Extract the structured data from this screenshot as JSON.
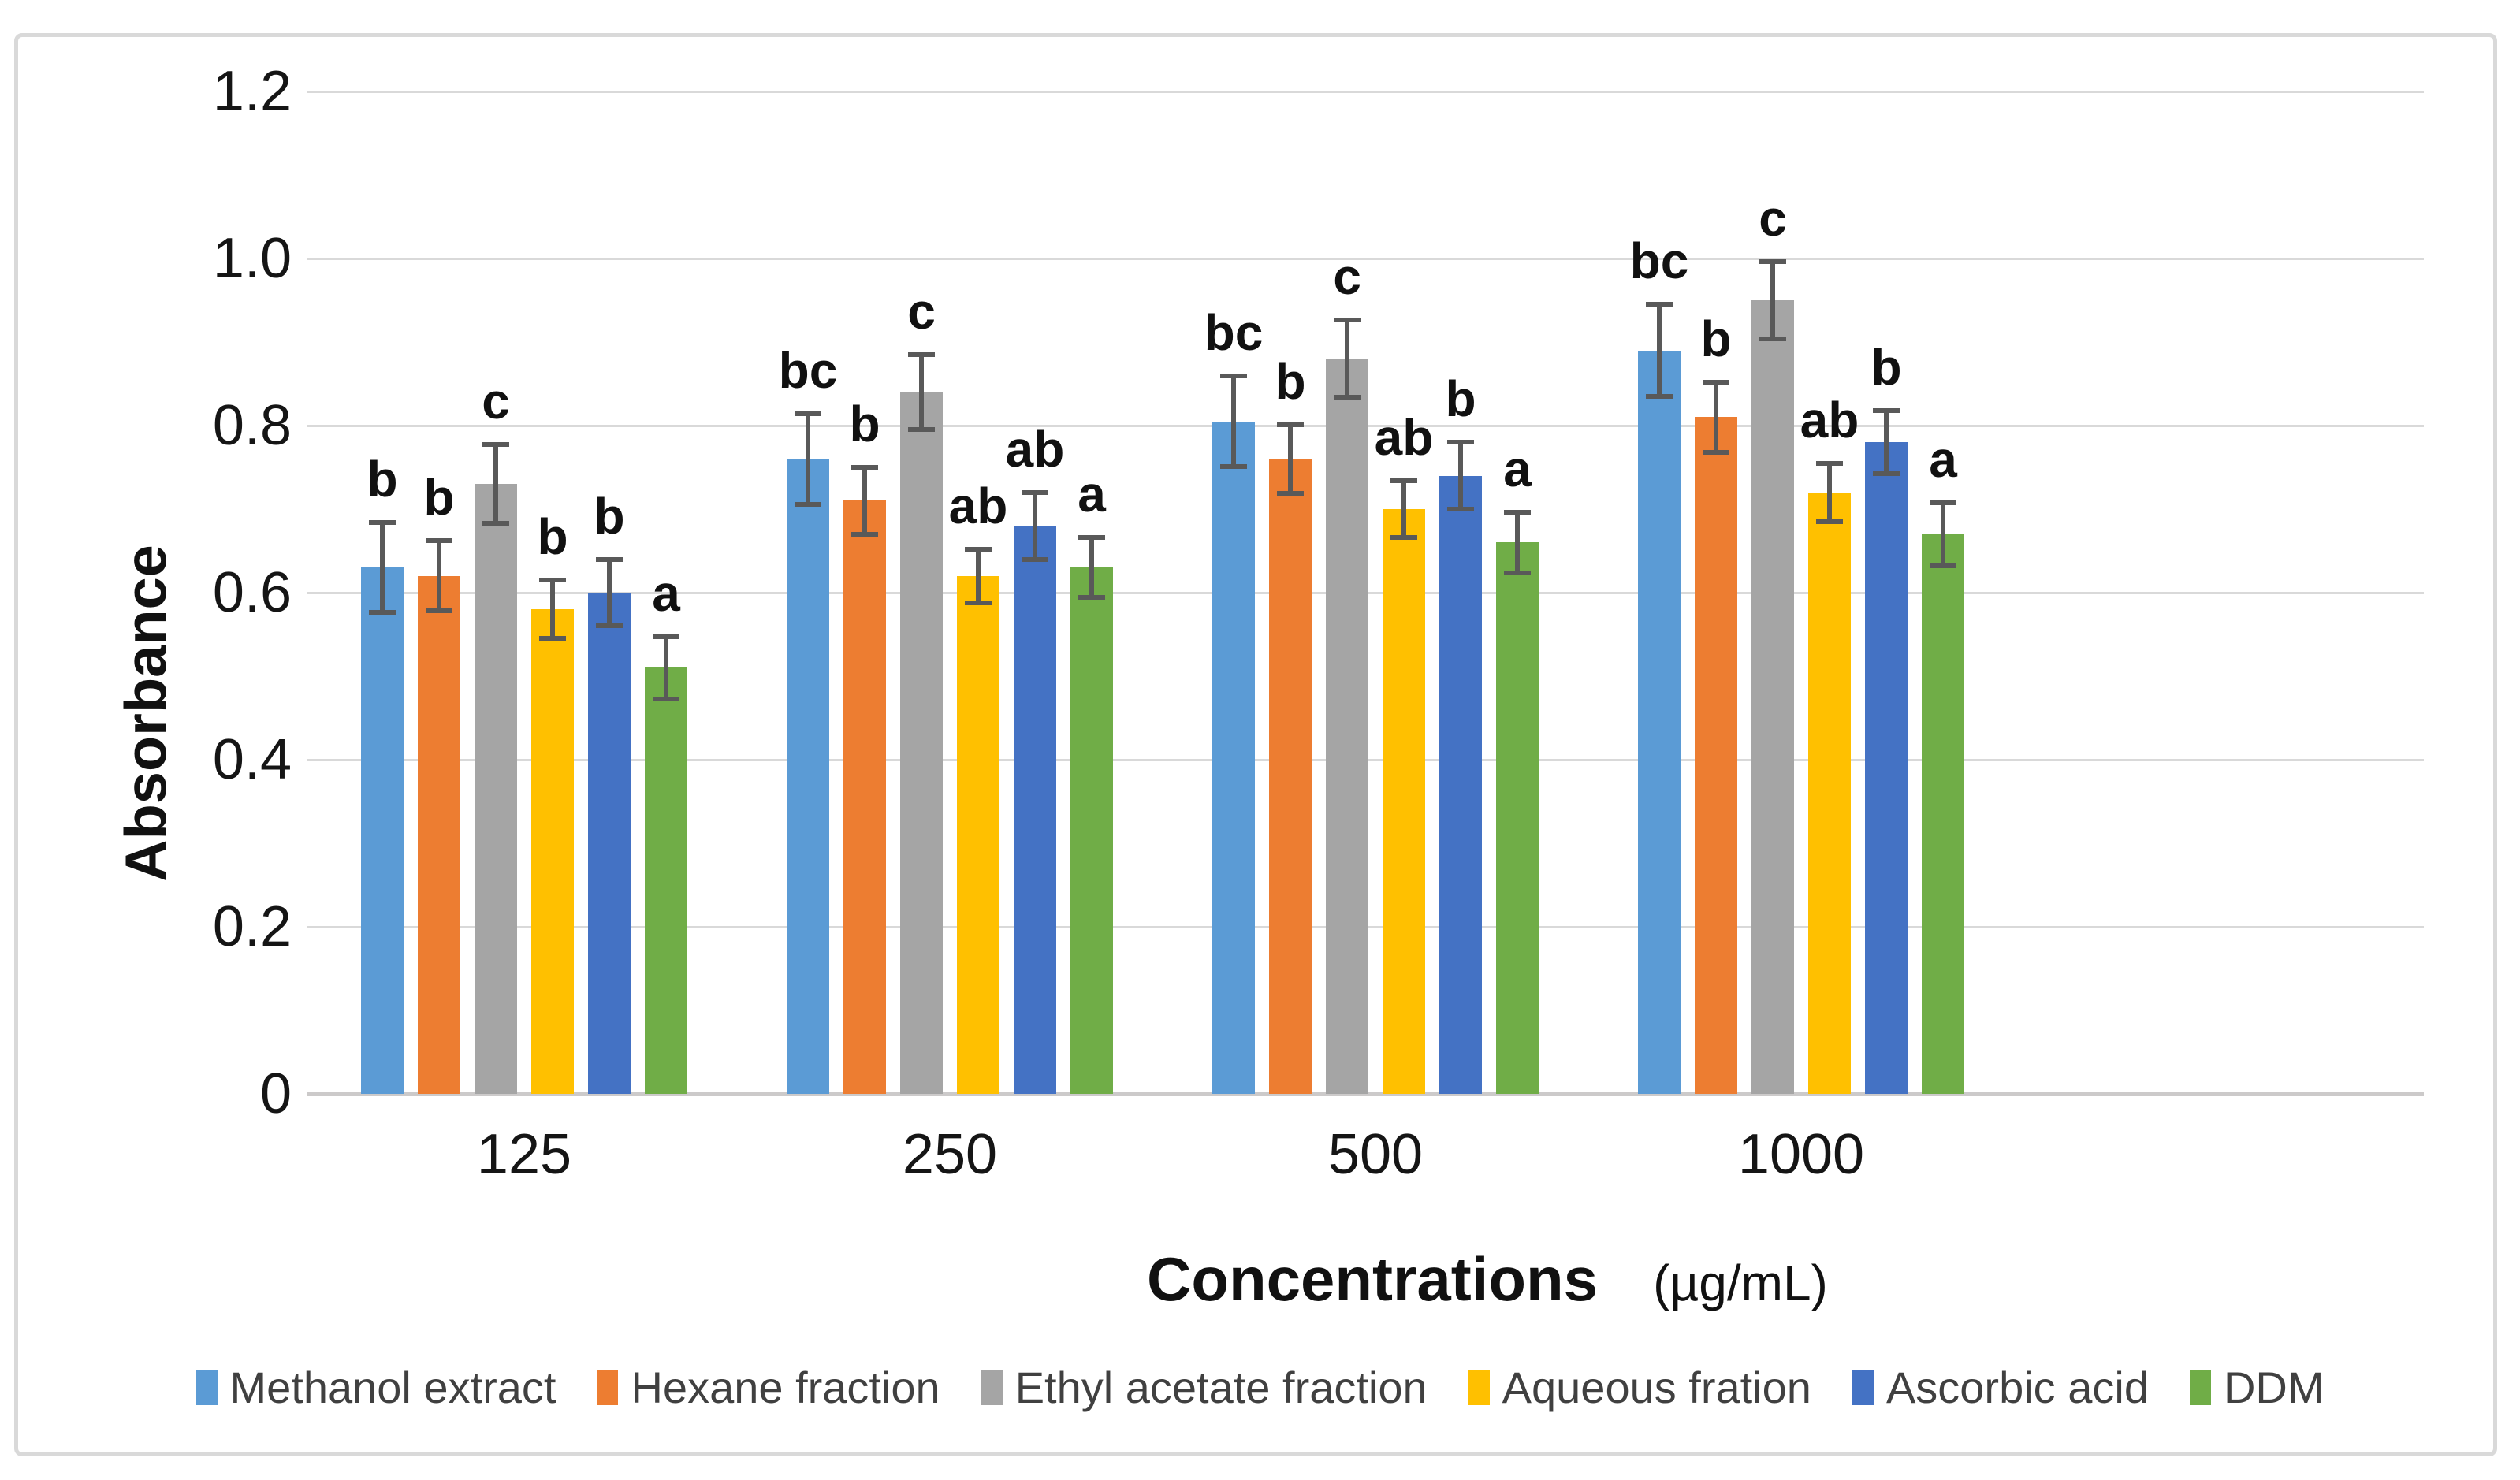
{
  "chart_data": {
    "type": "bar",
    "title": "",
    "xlabel": "Concentrations",
    "xlabel_unit": "(µg/mL)",
    "ylabel": "Absorbance",
    "ylim": [
      0,
      1.2
    ],
    "grid": true,
    "legend_position": "bottom",
    "ytick_labels": [
      "1.2",
      "1.0",
      "0.8",
      "0.6",
      "0.4",
      "0.2",
      "0"
    ],
    "categories": [
      "125",
      "250",
      "500",
      "1000"
    ],
    "series": [
      {
        "name": "Methanol extract",
        "color": "#5B9BD5",
        "values": [
          0.63,
          0.76,
          0.805,
          0.89
        ],
        "errors": [
          0.054,
          0.054,
          0.054,
          0.055
        ],
        "letters": [
          "b",
          "bc",
          "bc",
          "bc"
        ]
      },
      {
        "name": "Hexane fraction",
        "color": "#ED7D31",
        "values": [
          0.62,
          0.71,
          0.76,
          0.81
        ],
        "errors": [
          0.042,
          0.04,
          0.041,
          0.042
        ],
        "letters": [
          "b",
          "b",
          "b",
          "b"
        ]
      },
      {
        "name": "Ethyl acetate fraction",
        "color": "#A5A5A5",
        "values": [
          0.73,
          0.84,
          0.88,
          0.95
        ],
        "errors": [
          0.047,
          0.045,
          0.046,
          0.046
        ],
        "letters": [
          "c",
          "c",
          "c",
          "c"
        ]
      },
      {
        "name": "Aqueous fration",
        "color": "#FFC000",
        "values": [
          0.58,
          0.62,
          0.7,
          0.72
        ],
        "errors": [
          0.035,
          0.032,
          0.034,
          0.035
        ],
        "letters": [
          "b",
          "ab",
          "ab",
          "ab"
        ]
      },
      {
        "name": "Ascorbic acid",
        "color": "#4472C4",
        "values": [
          0.6,
          0.68,
          0.74,
          0.78
        ],
        "errors": [
          0.04,
          0.04,
          0.04,
          0.038
        ],
        "letters": [
          "b",
          "ab",
          "b",
          "b"
        ]
      },
      {
        "name": "DDM",
        "color": "#70AD47",
        "values": [
          0.51,
          0.63,
          0.66,
          0.67
        ],
        "errors": [
          0.037,
          0.036,
          0.036,
          0.038
        ],
        "letters": [
          "a",
          "a",
          "a",
          "a"
        ]
      }
    ],
    "colors": {
      "error_bar": "#595959",
      "gridline": "#d9d9d9",
      "axis_line": "#cccaca",
      "tick_text": "#151515",
      "legend_text": "#404040",
      "frame_border": "#d9d9d9"
    }
  }
}
